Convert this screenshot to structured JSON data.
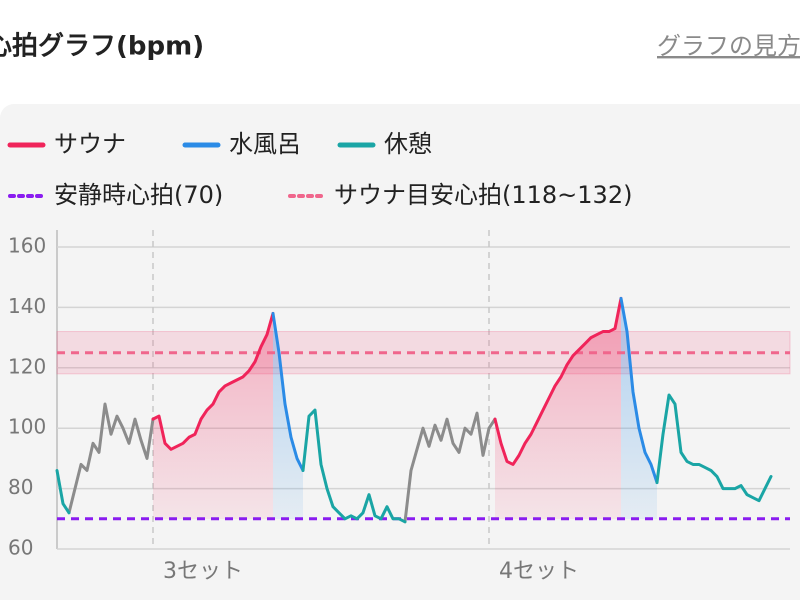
{
  "header": {
    "link": "グラフの見方"
  },
  "chart_data": {
    "type": "line",
    "title": "心拍グラフ(bpm)",
    "categories": [
      null,
      null,
      null,
      null,
      null,
      null,
      null,
      null,
      null,
      null,
      null,
      null,
      null,
      null,
      null,
      null,
      "3セット",
      null,
      null,
      null,
      null,
      null,
      null,
      null,
      null,
      null,
      null,
      null,
      null,
      null,
      null,
      null,
      null,
      null,
      null,
      null,
      null,
      null,
      null,
      null,
      null,
      null,
      null,
      null,
      null,
      null,
      null,
      null,
      null,
      null,
      null,
      null,
      null,
      null,
      null,
      null,
      null,
      null,
      null,
      null,
      null,
      null,
      null,
      null,
      null,
      null,
      null,
      null,
      null,
      null,
      null,
      null,
      "4セット",
      null,
      null,
      null,
      null,
      null,
      null,
      null,
      null,
      null,
      null,
      null,
      null,
      null,
      null,
      null,
      null,
      null,
      null,
      null,
      null,
      null,
      null,
      null,
      null,
      null,
      null,
      null,
      null,
      null,
      null,
      null,
      null,
      null,
      null,
      null,
      null,
      null,
      null,
      null,
      null,
      null,
      null,
      null,
      null,
      null,
      null,
      null
    ],
    "ylim": [
      60,
      160
    ],
    "yticks": [
      60,
      80,
      100,
      120,
      140,
      160
    ],
    "grid": true,
    "series": [
      {
        "color": "#8c8c8c",
        "values": [
          null,
          null,
          72,
          80,
          88,
          86,
          95,
          92,
          108,
          98,
          104,
          100,
          95,
          103,
          96,
          90,
          103,
          null,
          null,
          null,
          null,
          null,
          null,
          null,
          null,
          null,
          null,
          null,
          null,
          null,
          null,
          null,
          null,
          null,
          null,
          null,
          null,
          null,
          null,
          null,
          null,
          null,
          null,
          null,
          null,
          null,
          null,
          null,
          null,
          null,
          null,
          null,
          null,
          null,
          null,
          null,
          null,
          null,
          69,
          86,
          93,
          100,
          94,
          101,
          96,
          103,
          95,
          92,
          100,
          98,
          105,
          91,
          100,
          103,
          null,
          null,
          null,
          null,
          null,
          null,
          null,
          null,
          null,
          null,
          null,
          null,
          null,
          null,
          null,
          null,
          null,
          null,
          null,
          null,
          null,
          null,
          null,
          null,
          null,
          null,
          null,
          null,
          null,
          null,
          null,
          null,
          null,
          null,
          null,
          null,
          null,
          null,
          null,
          null,
          null,
          null,
          null,
          null,
          null,
          null
        ]
      },
      {
        "name": "サウナ",
        "color": "#f0245a",
        "area": true,
        "values": [
          null,
          null,
          null,
          null,
          null,
          null,
          null,
          null,
          null,
          null,
          null,
          null,
          null,
          null,
          null,
          null,
          103,
          104,
          95,
          93,
          94,
          95,
          97,
          98,
          103,
          106,
          108,
          112,
          114,
          115,
          116,
          117,
          119,
          122,
          127,
          131,
          138,
          null,
          null,
          null,
          null,
          null,
          null,
          null,
          null,
          null,
          null,
          null,
          null,
          null,
          null,
          null,
          null,
          null,
          null,
          null,
          null,
          null,
          null,
          null,
          null,
          null,
          null,
          null,
          null,
          null,
          null,
          null,
          null,
          null,
          null,
          null,
          null,
          103,
          95,
          89,
          88,
          91,
          95,
          98,
          102,
          106,
          110,
          114,
          117,
          121,
          124,
          126,
          128,
          130,
          131,
          132,
          132,
          133,
          143,
          null,
          null,
          null,
          null,
          null,
          null,
          null,
          null,
          null,
          null,
          null,
          null,
          null,
          null,
          null,
          null,
          null,
          null,
          null,
          null,
          null,
          null,
          null,
          null,
          null
        ]
      },
      {
        "name": "水風呂",
        "color": "#2b8be6",
        "area": true,
        "values": [
          null,
          null,
          null,
          null,
          null,
          null,
          null,
          null,
          null,
          null,
          null,
          null,
          null,
          null,
          null,
          null,
          null,
          null,
          null,
          null,
          null,
          null,
          null,
          null,
          null,
          null,
          null,
          null,
          null,
          null,
          null,
          null,
          null,
          null,
          null,
          null,
          138,
          125,
          108,
          97,
          90,
          86,
          null,
          null,
          null,
          null,
          null,
          null,
          null,
          null,
          null,
          null,
          null,
          null,
          null,
          null,
          null,
          null,
          null,
          null,
          null,
          null,
          null,
          null,
          null,
          null,
          null,
          null,
          null,
          null,
          null,
          null,
          null,
          null,
          null,
          null,
          null,
          null,
          null,
          null,
          null,
          null,
          null,
          null,
          null,
          null,
          null,
          null,
          null,
          null,
          null,
          null,
          null,
          null,
          143,
          132,
          112,
          100,
          92,
          88,
          82,
          null,
          null,
          null,
          null,
          null,
          null,
          null,
          null,
          null,
          null,
          null,
          null,
          null,
          null,
          null,
          null,
          null,
          null,
          null
        ]
      },
      {
        "name": "休憩",
        "color": "#1aa5a5",
        "values": [
          86,
          75,
          72,
          null,
          null,
          null,
          null,
          null,
          null,
          null,
          null,
          null,
          null,
          null,
          null,
          null,
          null,
          null,
          null,
          null,
          null,
          null,
          null,
          null,
          null,
          null,
          null,
          null,
          null,
          null,
          null,
          null,
          null,
          null,
          null,
          null,
          null,
          null,
          null,
          null,
          null,
          86,
          104,
          106,
          88,
          80,
          74,
          72,
          70,
          71,
          70,
          72,
          78,
          71,
          70,
          74,
          70,
          70,
          69,
          null,
          null,
          null,
          null,
          null,
          null,
          null,
          null,
          null,
          null,
          null,
          null,
          null,
          null,
          null,
          null,
          null,
          null,
          null,
          null,
          null,
          null,
          null,
          null,
          null,
          null,
          null,
          null,
          null,
          null,
          null,
          null,
          null,
          null,
          null,
          null,
          null,
          null,
          null,
          null,
          null,
          82,
          98,
          111,
          108,
          92,
          89,
          88,
          88,
          87,
          86,
          84,
          80,
          80,
          80,
          81,
          78,
          77,
          76,
          80,
          84
        ]
      }
    ],
    "reference_lines": [
      {
        "name": "安静時心拍(70)",
        "value": 70,
        "color": "#8a1cf0"
      },
      {
        "name": "サウナ目安心拍(118~132)",
        "value": 125,
        "band": [
          118,
          132
        ],
        "color": "#f0668c"
      }
    ]
  }
}
